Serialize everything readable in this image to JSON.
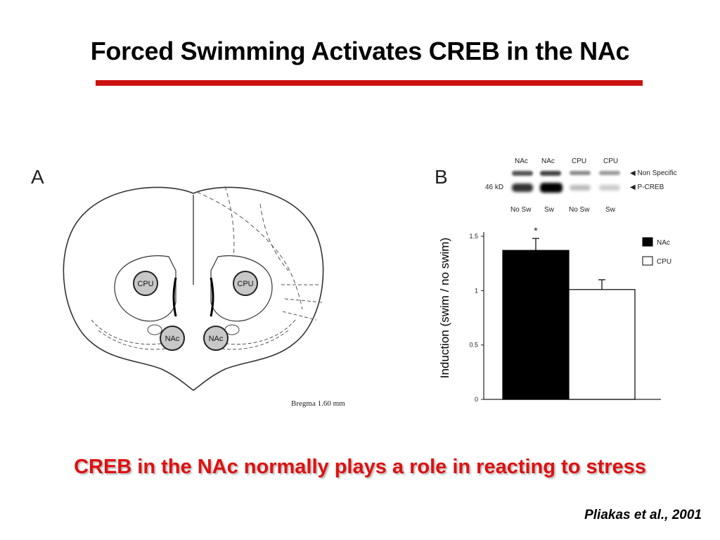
{
  "slide": {
    "title": "Forced Swimming Activates CREB in the NAc",
    "rule_color": "#cc1111",
    "takeaway": "CREB in the NAc normally plays a role in reacting to stress",
    "takeaway_color": "#e01010",
    "citation": "Pliakas et al., 2001"
  },
  "panel_a": {
    "letter": "A",
    "regions": [
      "CPU",
      "CPU",
      "NAc",
      "NAc"
    ],
    "caption": "Bregma 1.60 mm"
  },
  "panel_b": {
    "letter": "B",
    "blot": {
      "lane_top": [
        "NAc",
        "NAc",
        "CPU",
        "CPU"
      ],
      "lane_bottom": [
        "No Sw",
        "Sw",
        "No Sw",
        "Sw"
      ],
      "marker": "46 kD",
      "band_labels": [
        "Non Specific",
        "P-CREB"
      ]
    }
  },
  "chart_data": {
    "type": "bar",
    "categories": [
      "NAc",
      "CPU"
    ],
    "values": [
      1.37,
      1.01
    ],
    "errors": [
      0.11,
      0.09
    ],
    "colors": [
      "#000000",
      "#ffffff"
    ],
    "legend": [
      "NAc",
      "CPU"
    ],
    "legend_position": "top-right",
    "significance": [
      "*",
      ""
    ],
    "ylabel": "Induction (swim / no swim)",
    "ylim": [
      0,
      1.5
    ],
    "yticks": [
      0,
      0.5,
      1,
      1.5
    ],
    "ytick_labels": [
      "0",
      "0.5",
      "1",
      "1.5"
    ],
    "grid": false
  }
}
